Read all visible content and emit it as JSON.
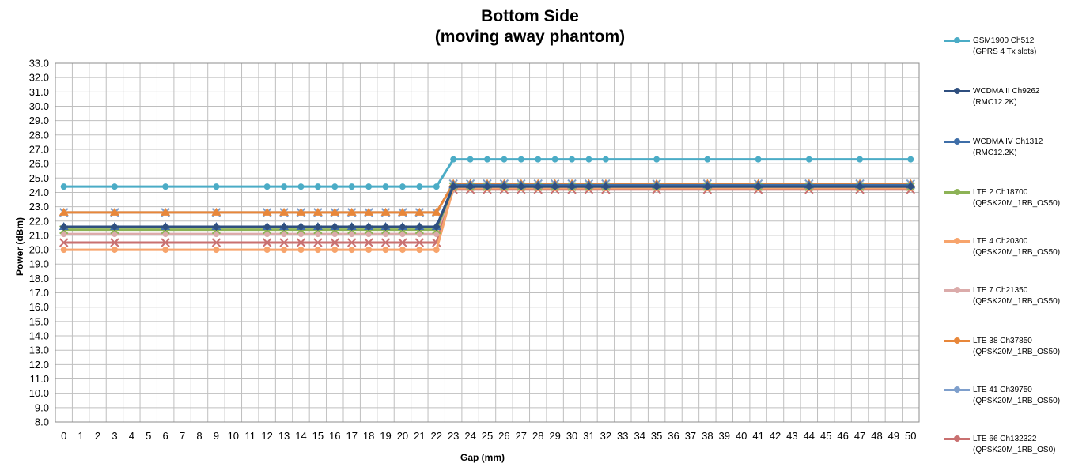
{
  "chart_data": {
    "type": "line",
    "title": "Bottom Side",
    "subtitle": "(moving away phantom)",
    "xlabel": "Gap (mm)",
    "ylabel": "Power (dBm)",
    "ylim": [
      8.0,
      33.0
    ],
    "y_ticks": [
      "8.0",
      "9.0",
      "10.0",
      "11.0",
      "12.0",
      "13.0",
      "14.0",
      "15.0",
      "16.0",
      "17.0",
      "18.0",
      "19.0",
      "20.0",
      "21.0",
      "22.0",
      "23.0",
      "24.0",
      "25.0",
      "26.0",
      "27.0",
      "28.0",
      "29.0",
      "30.0",
      "31.0",
      "32.0",
      "33.0"
    ],
    "categories": [
      "0",
      "1",
      "2",
      "3",
      "4",
      "5",
      "6",
      "7",
      "8",
      "9",
      "10",
      "11",
      "12",
      "13",
      "14",
      "15",
      "16",
      "17",
      "18",
      "19",
      "20",
      "21",
      "22",
      "23",
      "24",
      "25",
      "26",
      "27",
      "28",
      "29",
      "30",
      "31",
      "32",
      "33",
      "34",
      "35",
      "36",
      "37",
      "38",
      "39",
      "40",
      "41",
      "42",
      "43",
      "44",
      "45",
      "46",
      "47",
      "48",
      "49",
      "50"
    ],
    "x": [
      0,
      3,
      6,
      9,
      12,
      13,
      14,
      15,
      16,
      17,
      18,
      19,
      20,
      21,
      22,
      23,
      24,
      25,
      26,
      27,
      28,
      29,
      30,
      31,
      32,
      35,
      38,
      41,
      44,
      47,
      50
    ],
    "grid": true,
    "legend": "right",
    "series": [
      {
        "name": "GSM1900  Ch512",
        "subname": "(GPRS 4 Tx slots)",
        "color": "#4BACC6",
        "marker": "circle",
        "values": [
          24.4,
          24.4,
          24.4,
          24.4,
          24.4,
          24.4,
          24.4,
          24.4,
          24.4,
          24.4,
          24.4,
          24.4,
          24.4,
          24.4,
          24.4,
          26.3,
          26.3,
          26.3,
          26.3,
          26.3,
          26.3,
          26.3,
          26.3,
          26.3,
          26.3,
          26.3,
          26.3,
          26.3,
          26.3,
          26.3,
          26.3
        ]
      },
      {
        "name": "WCDMA II Ch9262",
        "subname": "(RMC12.2K)",
        "color": "#2F4F7F",
        "marker": "diamond",
        "values": [
          21.6,
          21.6,
          21.6,
          21.6,
          21.6,
          21.6,
          21.6,
          21.6,
          21.6,
          21.6,
          21.6,
          21.6,
          21.6,
          21.6,
          21.6,
          24.4,
          24.4,
          24.4,
          24.4,
          24.4,
          24.4,
          24.4,
          24.4,
          24.4,
          24.4,
          24.4,
          24.4,
          24.4,
          24.4,
          24.4,
          24.4
        ]
      },
      {
        "name": "WCDMA IV Ch1312",
        "subname": "(RMC12.2K)",
        "color": "#3E6EA8",
        "marker": "triangle",
        "values": [
          21.6,
          21.6,
          21.6,
          21.6,
          21.6,
          21.6,
          21.6,
          21.6,
          21.6,
          21.6,
          21.6,
          21.6,
          21.6,
          21.6,
          21.6,
          24.5,
          24.5,
          24.5,
          24.5,
          24.5,
          24.5,
          24.5,
          24.5,
          24.5,
          24.5,
          24.5,
          24.5,
          24.5,
          24.5,
          24.5,
          24.5
        ]
      },
      {
        "name": "LTE 2 Ch18700",
        "subname": "(QPSK20M_1RB_OS50)",
        "color": "#8DB356",
        "marker": "x",
        "values": [
          21.4,
          21.4,
          21.4,
          21.4,
          21.4,
          21.4,
          21.4,
          21.4,
          21.4,
          21.4,
          21.4,
          21.4,
          21.4,
          21.4,
          21.4,
          24.4,
          24.4,
          24.4,
          24.4,
          24.4,
          24.4,
          24.4,
          24.4,
          24.4,
          24.4,
          24.4,
          24.4,
          24.4,
          24.4,
          24.4,
          24.4
        ]
      },
      {
        "name": "LTE 4 Ch20300",
        "subname": "(QPSK20M_1RB_OS50)",
        "color": "#F7A46C",
        "marker": "circle",
        "values": [
          20.0,
          20.0,
          20.0,
          20.0,
          20.0,
          20.0,
          20.0,
          20.0,
          20.0,
          20.0,
          20.0,
          20.0,
          20.0,
          20.0,
          20.0,
          24.3,
          24.3,
          24.3,
          24.3,
          24.3,
          24.3,
          24.3,
          24.3,
          24.3,
          24.3,
          24.3,
          24.3,
          24.3,
          24.3,
          24.3,
          24.3
        ]
      },
      {
        "name": "LTE 7 Ch21350",
        "subname": "(QPSK20M_1RB_OS50)",
        "color": "#DBABAA",
        "marker": "circle",
        "values": [
          21.1,
          21.1,
          21.1,
          21.1,
          21.1,
          21.1,
          21.1,
          21.1,
          21.1,
          21.1,
          21.1,
          21.1,
          21.1,
          21.1,
          21.1,
          24.4,
          24.4,
          24.4,
          24.4,
          24.4,
          24.4,
          24.4,
          24.4,
          24.4,
          24.4,
          24.4,
          24.4,
          24.4,
          24.4,
          24.4,
          24.4
        ]
      },
      {
        "name": "LTE 38 Ch37850",
        "subname": "(QPSK20M_1RB_OS50)",
        "color": "#E8873A",
        "marker": "triangle",
        "values": [
          22.6,
          22.6,
          22.6,
          22.6,
          22.6,
          22.6,
          22.6,
          22.6,
          22.6,
          22.6,
          22.6,
          22.6,
          22.6,
          22.6,
          22.6,
          24.6,
          24.6,
          24.6,
          24.6,
          24.6,
          24.6,
          24.6,
          24.6,
          24.6,
          24.6,
          24.6,
          24.6,
          24.6,
          24.6,
          24.6,
          24.6
        ]
      },
      {
        "name": "LTE 41 Ch39750",
        "subname": "(QPSK20M_1RB_OS50)",
        "color": "#7E9FCC",
        "marker": "x",
        "values": [
          22.6,
          22.6,
          22.6,
          22.6,
          22.6,
          22.6,
          22.6,
          22.6,
          22.6,
          22.6,
          22.6,
          22.6,
          22.6,
          22.6,
          22.6,
          24.6,
          24.6,
          24.6,
          24.6,
          24.6,
          24.6,
          24.6,
          24.6,
          24.6,
          24.6,
          24.6,
          24.6,
          24.6,
          24.6,
          24.6,
          24.6
        ]
      },
      {
        "name": "LTE 66 Ch132322",
        "subname": "(QPSK20M_1RB_OS0)",
        "color": "#C97070",
        "marker": "x",
        "values": [
          20.5,
          20.5,
          20.5,
          20.5,
          20.5,
          20.5,
          20.5,
          20.5,
          20.5,
          20.5,
          20.5,
          20.5,
          20.5,
          20.5,
          20.5,
          24.2,
          24.2,
          24.2,
          24.2,
          24.2,
          24.2,
          24.2,
          24.2,
          24.2,
          24.2,
          24.2,
          24.2,
          24.2,
          24.2,
          24.2,
          24.2
        ]
      }
    ]
  }
}
